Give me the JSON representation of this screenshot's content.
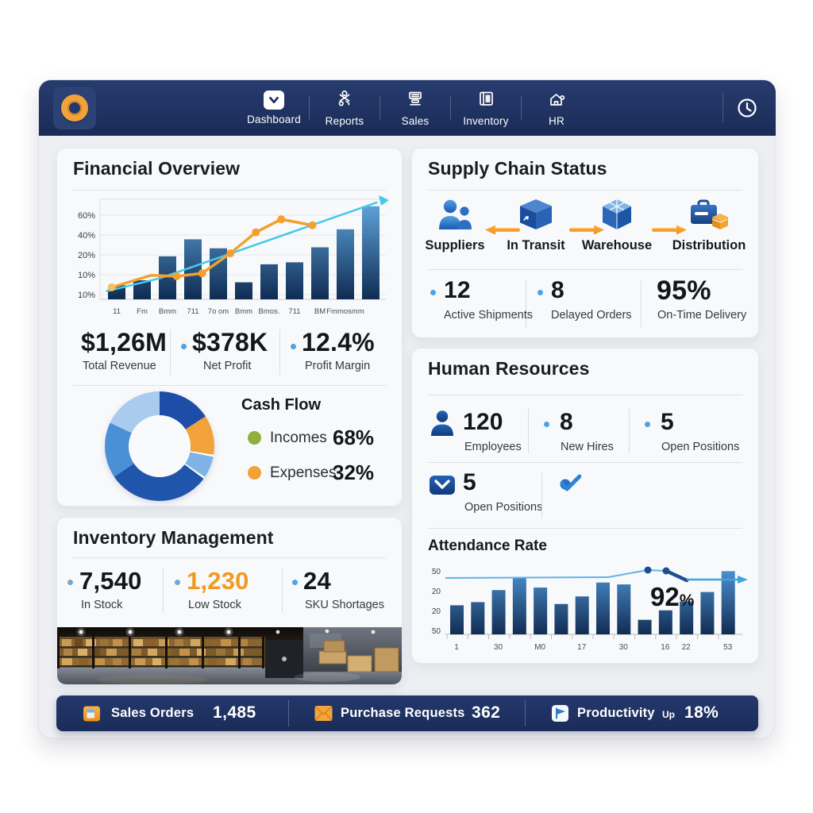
{
  "nav": {
    "items": [
      {
        "label": "Dashboard",
        "icon": "dashboard-icon",
        "active": true
      },
      {
        "label": "Reports",
        "icon": "reports-icon",
        "active": false
      },
      {
        "label": "Sales",
        "icon": "sales-icon",
        "active": false
      },
      {
        "label": "Inventory",
        "icon": "inventory-icon",
        "active": false
      },
      {
        "label": "HR",
        "icon": "hr-icon",
        "active": false
      }
    ],
    "clock_icon": "clock-icon",
    "bar_color": "#1e3160"
  },
  "financial": {
    "title": "Financial Overview",
    "metrics": [
      {
        "value": "$1,26M",
        "label": "Total Revenue"
      },
      {
        "value": "$378K",
        "label": "Net Profit"
      },
      {
        "value": "12.4%",
        "label": "Profit Margin"
      }
    ],
    "cashflow": {
      "title": "Cash Flow",
      "items": [
        {
          "label": "Incomes",
          "value": "68%",
          "color": "#8fb03a"
        },
        {
          "label": "Expenses",
          "value": "32%",
          "color": "#f2a136"
        }
      ]
    }
  },
  "supply": {
    "title": "Supply Chain Status",
    "stages": [
      {
        "label": "Suppliers",
        "icon": "suppliers-people-icon"
      },
      {
        "label": "In Transit",
        "icon": "transit-cube-icon"
      },
      {
        "label": "Warehouse",
        "icon": "warehouse-package-icon"
      },
      {
        "label": "Distribution",
        "icon": "distribution-case-icon"
      }
    ],
    "metrics": [
      {
        "value": "12",
        "label": "Active Shipments"
      },
      {
        "value": "8",
        "label": "Delayed Orders"
      },
      {
        "value": "95%",
        "label": "On-Time Delivery"
      }
    ]
  },
  "hr": {
    "title": "Human Resources",
    "row1": [
      {
        "value": "120",
        "label": "Employees",
        "icon": "person-icon"
      },
      {
        "value": "8",
        "label": "New Hires"
      },
      {
        "value": "5",
        "label": "Open Positions"
      }
    ],
    "row2": [
      {
        "value": "5",
        "label": "Open Positions",
        "icon": "envelope-icon"
      }
    ],
    "check_icon": "check-icon",
    "attendance": {
      "title": "Attendance Rate",
      "highlight": "92",
      "highlight_suffix": "%"
    }
  },
  "inventory": {
    "title": "Inventory Management",
    "metrics": [
      {
        "value": "7,540",
        "label": "In Stock",
        "color": "#151619"
      },
      {
        "value": "1,230",
        "label": "Low Stock",
        "color": "#f09a22"
      },
      {
        "value": "24",
        "label": "SKU Shortages",
        "color": "#151619"
      }
    ],
    "photo": "warehouse-photo"
  },
  "footer": {
    "items": [
      {
        "icon": "orders-box-icon",
        "label": "Sales Orders",
        "value": "1,485"
      },
      {
        "icon": "purchase-envelope-icon",
        "label": "Purchase Requests",
        "value": "362"
      },
      {
        "icon": "productivity-flag-icon",
        "label": "Productivity",
        "prefix": "Up",
        "value": "18%"
      }
    ]
  },
  "chart_data": [
    {
      "id": "financial-chart",
      "type": "bar",
      "title": "Financial Overview",
      "ylim": [
        0,
        100
      ],
      "grid": true,
      "y_tick_labels": [
        "60%",
        "40%",
        "20%",
        "10%",
        "10%"
      ],
      "x_tick_labels": [
        "11",
        "Fm",
        "Bmm",
        "711",
        "7o om",
        "Bmm",
        "Bmos.",
        "711",
        "BM",
        "Fmmosmm",
        ""
      ],
      "bar_values": [
        14,
        19,
        43,
        60,
        51,
        17,
        35,
        37,
        52,
        70,
        93
      ],
      "bar_color_top": "#63a9e2",
      "bar_color_bottom": "#0f2c52",
      "series": [
        {
          "name": "orange-line",
          "color": "#f59f2e",
          "x_frac": [
            0.03,
            0.17,
            0.26,
            0.35,
            0.45,
            0.54,
            0.63,
            0.74
          ],
          "values": [
            12,
            24,
            23,
            26,
            46,
            67,
            80,
            74
          ]
        },
        {
          "name": "cyan-trend-line",
          "color": "#46c8ea",
          "points": [
            [
              0.01,
              8
            ],
            [
              0.2,
              21
            ],
            [
              0.97,
              97
            ]
          ]
        }
      ]
    },
    {
      "id": "attendance-chart",
      "type": "bar",
      "title": "Attendance Rate",
      "ylim": [
        0,
        108
      ],
      "highlight": "92%",
      "y_tick_labels": [
        "50",
        "20",
        "20",
        "50"
      ],
      "x_tick_labels": [
        "1",
        "30",
        "M0",
        "17",
        "30",
        "16",
        "22",
        "53"
      ],
      "bar_values": [
        46,
        51,
        70,
        89,
        74,
        48,
        60,
        82,
        79,
        23,
        38,
        52,
        67,
        100
      ],
      "bar_color_top": "#4f97d8",
      "bar_color_bottom": "#122c52",
      "line_color": "#5fb5e9",
      "dot_color": "#1d4f8f"
    },
    {
      "id": "cashflow-donut",
      "type": "pie",
      "title": "Cash Flow",
      "slices": [
        {
          "name": "dark-blue",
          "pct": 15.8,
          "color": "#1d4da6"
        },
        {
          "name": "orange",
          "pct": 11.7,
          "color": "#f2a23a"
        },
        {
          "name": "gap",
          "pct": 0.6,
          "color": "#ffffff"
        },
        {
          "name": "light-blue",
          "pct": 6.4,
          "color": "#7fb3e6"
        },
        {
          "name": "gap2",
          "pct": 0.6,
          "color": "#ffffff"
        },
        {
          "name": "deep-blue",
          "pct": 30.4,
          "color": "#1f55aa"
        },
        {
          "name": "medium-blue",
          "pct": 16.5,
          "color": "#4a90d6"
        },
        {
          "name": "pale-blue",
          "pct": 18.0,
          "color": "#a8cbee"
        }
      ],
      "legend": [
        "Incomes 68%",
        "Expenses 32%"
      ]
    }
  ]
}
